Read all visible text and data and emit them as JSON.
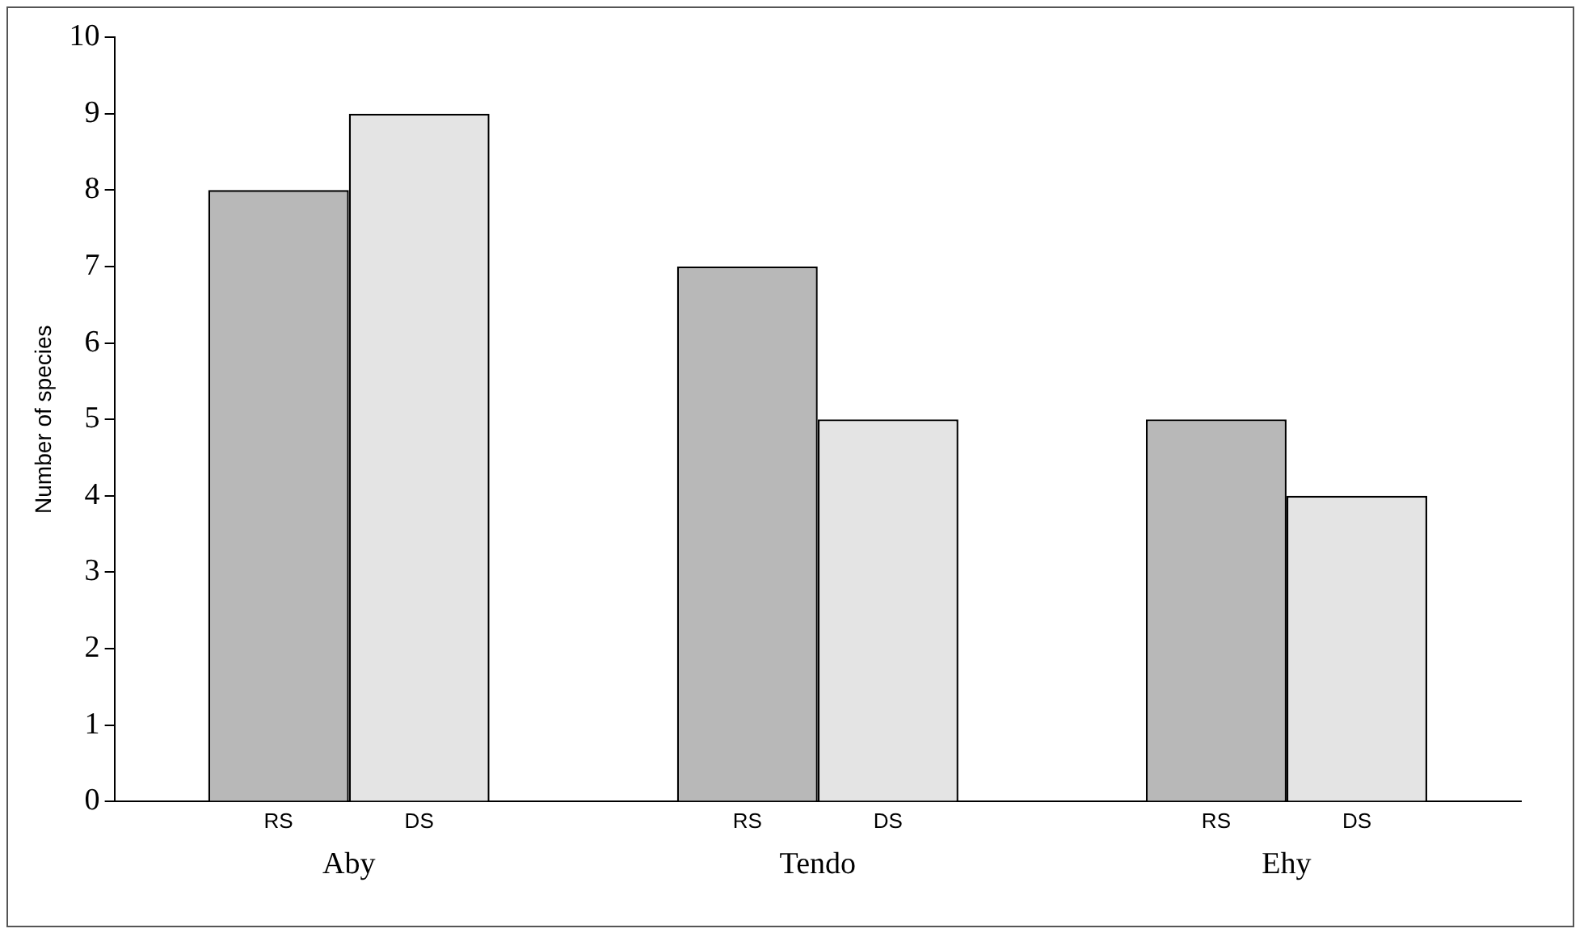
{
  "chart_data": {
    "type": "bar",
    "ylabel": "Number of species",
    "categories": [
      "Aby",
      "Tendo",
      "Ehy"
    ],
    "series": [
      {
        "name": "RS",
        "color": "#b8b8b8",
        "values": [
          8,
          7,
          5
        ]
      },
      {
        "name": "DS",
        "color": "#e4e4e4",
        "values": [
          9,
          5,
          4
        ]
      }
    ],
    "ylim": [
      0,
      10
    ],
    "yticks": [
      0,
      1,
      2,
      3,
      4,
      5,
      6,
      7,
      8,
      9,
      10
    ],
    "grid": false,
    "legend": false
  }
}
